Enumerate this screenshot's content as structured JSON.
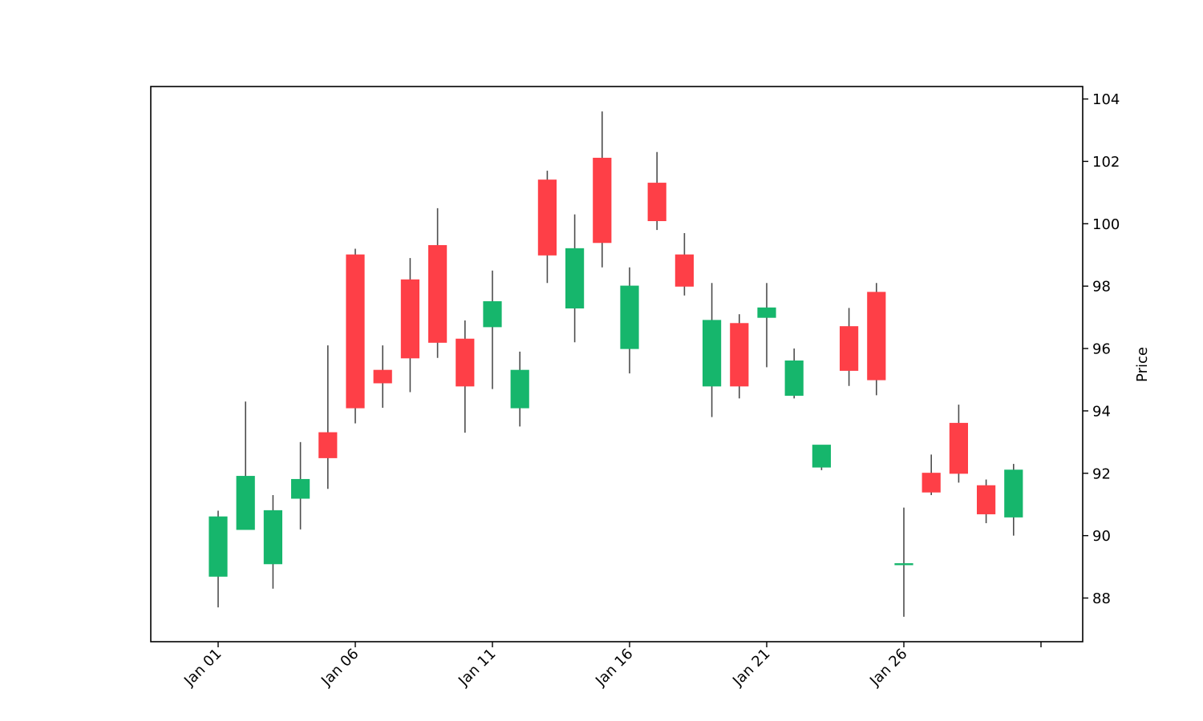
{
  "chart_data": {
    "type": "candlestick",
    "ylabel": "Price",
    "ylim": [
      86.6,
      104.4
    ],
    "yticks": [
      88,
      90,
      92,
      94,
      96,
      98,
      100,
      102,
      104
    ],
    "xtick_labels": [
      "Jan 01",
      "Jan 06",
      "Jan 11",
      "Jan 16",
      "Jan 21",
      "Jan 26"
    ],
    "y_axis_position": "right",
    "grid": false,
    "colors": {
      "up": "#16b66c",
      "down": "#fe3f47",
      "wick": "#4d4d4d",
      "axis": "#000000"
    },
    "candles": [
      {
        "date": "Jan 01",
        "open": 88.7,
        "high": 90.8,
        "low": 87.7,
        "close": 90.6
      },
      {
        "date": "Jan 02",
        "open": 90.2,
        "high": 94.3,
        "low": 90.2,
        "close": 91.9
      },
      {
        "date": "Jan 03",
        "open": 89.1,
        "high": 91.3,
        "low": 88.3,
        "close": 90.8
      },
      {
        "date": "Jan 04",
        "open": 91.2,
        "high": 93.0,
        "low": 90.2,
        "close": 91.8
      },
      {
        "date": "Jan 05",
        "open": 93.3,
        "high": 96.1,
        "low": 91.5,
        "close": 92.5
      },
      {
        "date": "Jan 06",
        "open": 99.0,
        "high": 99.2,
        "low": 93.6,
        "close": 94.1
      },
      {
        "date": "Jan 07",
        "open": 95.3,
        "high": 96.1,
        "low": 94.1,
        "close": 94.9
      },
      {
        "date": "Jan 08",
        "open": 98.2,
        "high": 98.9,
        "low": 94.6,
        "close": 95.7
      },
      {
        "date": "Jan 09",
        "open": 99.3,
        "high": 100.5,
        "low": 95.7,
        "close": 96.2
      },
      {
        "date": "Jan 10",
        "open": 96.3,
        "high": 96.9,
        "low": 93.3,
        "close": 94.8
      },
      {
        "date": "Jan 11",
        "open": 96.7,
        "high": 98.5,
        "low": 94.7,
        "close": 97.5
      },
      {
        "date": "Jan 12",
        "open": 94.1,
        "high": 95.9,
        "low": 93.5,
        "close": 95.3
      },
      {
        "date": "Jan 13",
        "open": 101.4,
        "high": 101.7,
        "low": 98.1,
        "close": 99.0
      },
      {
        "date": "Jan 14",
        "open": 97.3,
        "high": 100.3,
        "low": 96.2,
        "close": 99.2
      },
      {
        "date": "Jan 15",
        "open": 102.1,
        "high": 103.6,
        "low": 98.6,
        "close": 99.4
      },
      {
        "date": "Jan 16",
        "open": 96.0,
        "high": 98.6,
        "low": 95.2,
        "close": 98.0
      },
      {
        "date": "Jan 17",
        "open": 101.3,
        "high": 102.3,
        "low": 99.8,
        "close": 100.1
      },
      {
        "date": "Jan 18",
        "open": 99.0,
        "high": 99.7,
        "low": 97.7,
        "close": 98.0
      },
      {
        "date": "Jan 19",
        "open": 94.8,
        "high": 98.1,
        "low": 93.8,
        "close": 96.9
      },
      {
        "date": "Jan 20",
        "open": 96.8,
        "high": 97.1,
        "low": 94.4,
        "close": 94.8
      },
      {
        "date": "Jan 21",
        "open": 97.0,
        "high": 98.1,
        "low": 95.4,
        "close": 97.3
      },
      {
        "date": "Jan 22",
        "open": 94.5,
        "high": 96.0,
        "low": 94.4,
        "close": 95.6
      },
      {
        "date": "Jan 23",
        "open": 92.2,
        "high": 92.9,
        "low": 92.1,
        "close": 92.9
      },
      {
        "date": "Jan 24",
        "open": 96.7,
        "high": 97.3,
        "low": 94.8,
        "close": 95.3
      },
      {
        "date": "Jan 25",
        "open": 97.8,
        "high": 98.1,
        "low": 94.5,
        "close": 95.0
      },
      {
        "date": "Jan 26",
        "open": 89.1,
        "high": 90.9,
        "low": 87.4,
        "close": 89.1
      },
      {
        "date": "Jan 27",
        "open": 92.0,
        "high": 92.6,
        "low": 91.3,
        "close": 91.4
      },
      {
        "date": "Jan 28",
        "open": 93.6,
        "high": 94.2,
        "low": 91.7,
        "close": 92.0
      },
      {
        "date": "Jan 29",
        "open": 91.6,
        "high": 91.8,
        "low": 90.4,
        "close": 90.7
      },
      {
        "date": "Jan 30",
        "open": 90.6,
        "high": 92.3,
        "low": 90.0,
        "close": 92.1
      }
    ]
  }
}
